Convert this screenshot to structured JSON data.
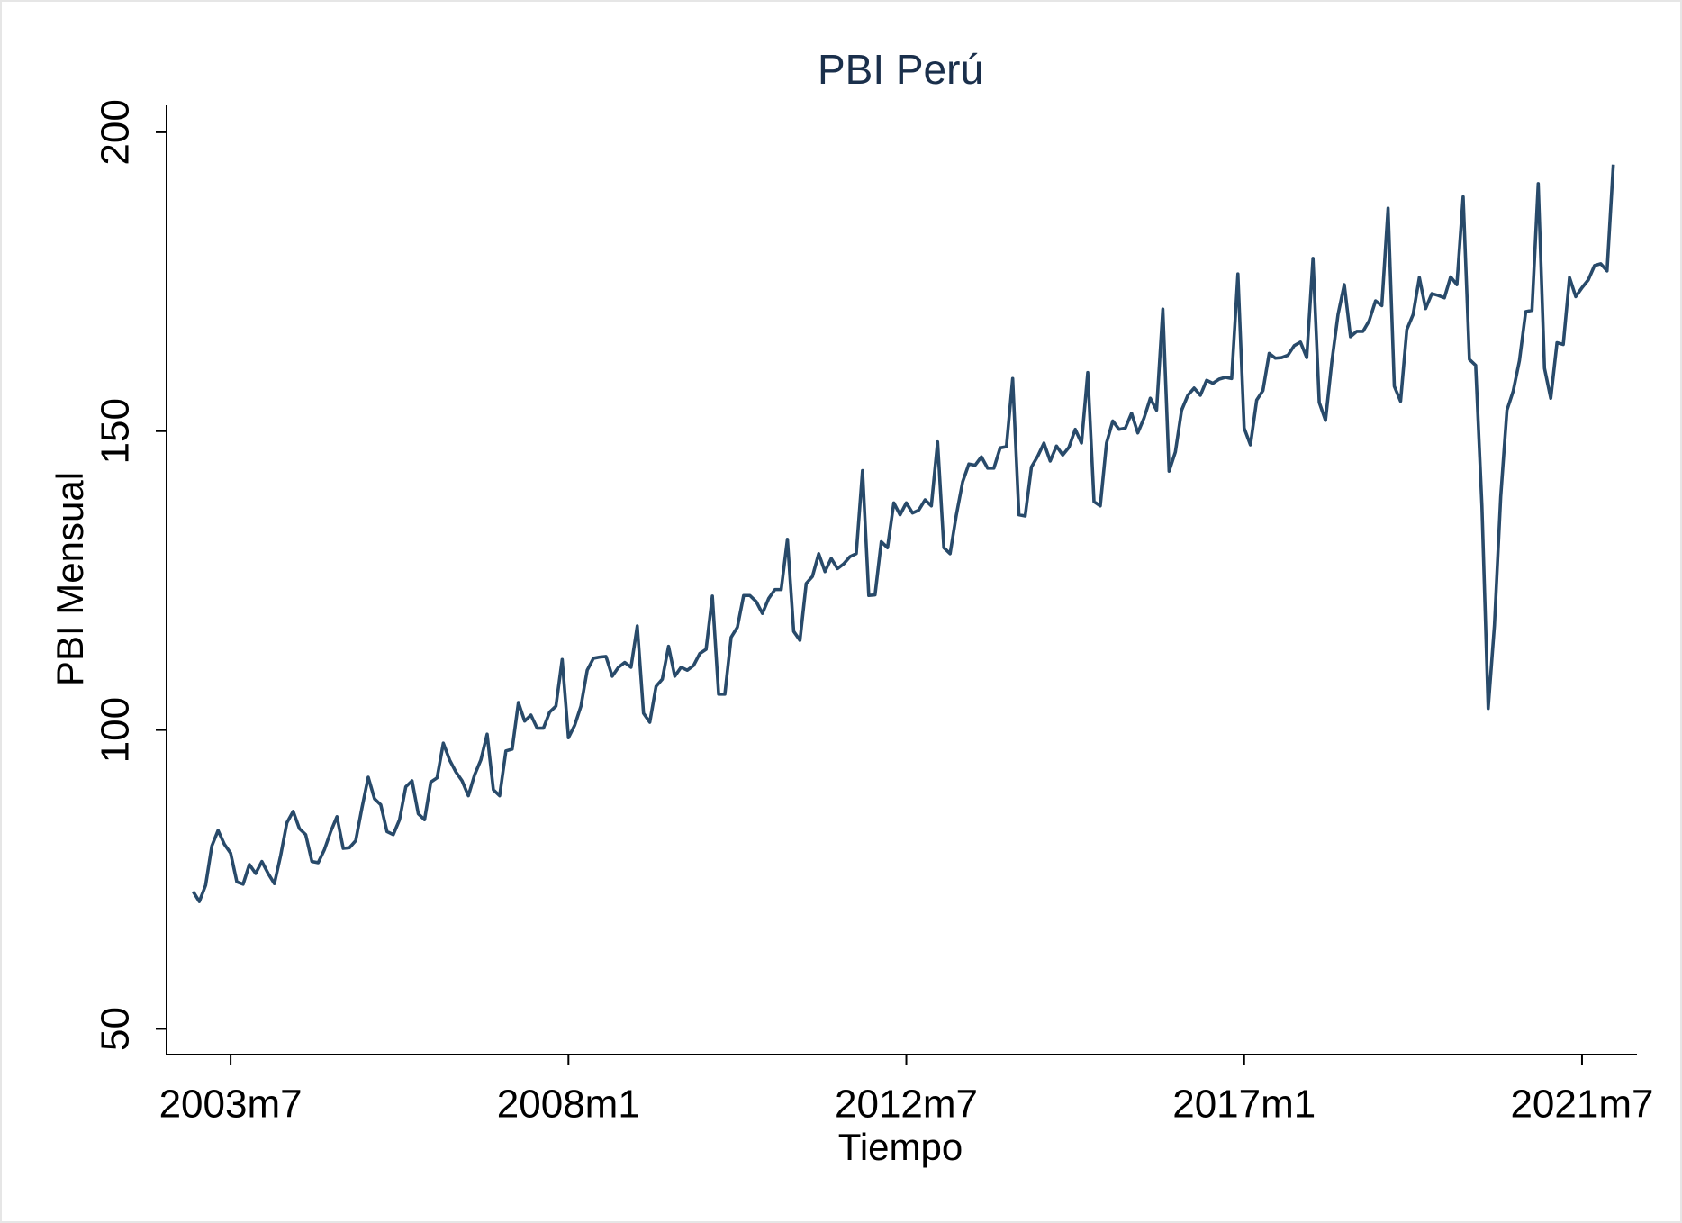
{
  "chart_data": {
    "type": "line",
    "title": "PBI Perú",
    "x_label": "Tiempo",
    "y_label": "PBI Mensual",
    "x": [
      "2003m1",
      "2003m2",
      "2003m3",
      "2003m4",
      "2003m5",
      "2003m6",
      "2003m7",
      "2003m8",
      "2003m9",
      "2003m10",
      "2003m11",
      "2003m12",
      "2004m1",
      "2004m2",
      "2004m3",
      "2004m4",
      "2004m5",
      "2004m6",
      "2004m7",
      "2004m8",
      "2004m9",
      "2004m10",
      "2004m11",
      "2004m12",
      "2005m1",
      "2005m2",
      "2005m3",
      "2005m4",
      "2005m5",
      "2005m6",
      "2005m7",
      "2005m8",
      "2005m9",
      "2005m10",
      "2005m11",
      "2005m12",
      "2006m1",
      "2006m2",
      "2006m3",
      "2006m4",
      "2006m5",
      "2006m6",
      "2006m7",
      "2006m8",
      "2006m9",
      "2006m10",
      "2006m11",
      "2006m12",
      "2007m1",
      "2007m2",
      "2007m3",
      "2007m4",
      "2007m5",
      "2007m6",
      "2007m7",
      "2007m8",
      "2007m9",
      "2007m10",
      "2007m11",
      "2007m12",
      "2008m1",
      "2008m2",
      "2008m3",
      "2008m4",
      "2008m5",
      "2008m6",
      "2008m7",
      "2008m8",
      "2008m9",
      "2008m10",
      "2008m11",
      "2008m12",
      "2009m1",
      "2009m2",
      "2009m3",
      "2009m4",
      "2009m5",
      "2009m6",
      "2009m7",
      "2009m8",
      "2009m9",
      "2009m10",
      "2009m11",
      "2009m12",
      "2010m1",
      "2010m2",
      "2010m3",
      "2010m4",
      "2010m5",
      "2010m6",
      "2010m7",
      "2010m8",
      "2010m9",
      "2010m10",
      "2010m11",
      "2010m12",
      "2011m1",
      "2011m2",
      "2011m3",
      "2011m4",
      "2011m5",
      "2011m6",
      "2011m7",
      "2011m8",
      "2011m9",
      "2011m10",
      "2011m11",
      "2011m12",
      "2012m1",
      "2012m2",
      "2012m3",
      "2012m4",
      "2012m5",
      "2012m6",
      "2012m7",
      "2012m8",
      "2012m9",
      "2012m10",
      "2012m11",
      "2012m12",
      "2013m1",
      "2013m2",
      "2013m3",
      "2013m4",
      "2013m5",
      "2013m6",
      "2013m7",
      "2013m8",
      "2013m9",
      "2013m10",
      "2013m11",
      "2013m12",
      "2014m1",
      "2014m2",
      "2014m3",
      "2014m4",
      "2014m5",
      "2014m6",
      "2014m7",
      "2014m8",
      "2014m9",
      "2014m10",
      "2014m11",
      "2014m12",
      "2015m1",
      "2015m2",
      "2015m3",
      "2015m4",
      "2015m5",
      "2015m6",
      "2015m7",
      "2015m8",
      "2015m9",
      "2015m10",
      "2015m11",
      "2015m12",
      "2016m1",
      "2016m2",
      "2016m3",
      "2016m4",
      "2016m5",
      "2016m6",
      "2016m7",
      "2016m8",
      "2016m9",
      "2016m10",
      "2016m11",
      "2016m12",
      "2017m1",
      "2017m2",
      "2017m3",
      "2017m4",
      "2017m5",
      "2017m6",
      "2017m7",
      "2017m8",
      "2017m9",
      "2017m10",
      "2017m11",
      "2017m12",
      "2018m1",
      "2018m2",
      "2018m3",
      "2018m4",
      "2018m5",
      "2018m6",
      "2018m7",
      "2018m8",
      "2018m9",
      "2018m10",
      "2018m11",
      "2018m12",
      "2019m1",
      "2019m2",
      "2019m3",
      "2019m4",
      "2019m5",
      "2019m6",
      "2019m7",
      "2019m8",
      "2019m9",
      "2019m10",
      "2019m11",
      "2019m12",
      "2020m1",
      "2020m2",
      "2020m3",
      "2020m4",
      "2020m5",
      "2020m6",
      "2020m7",
      "2020m8",
      "2020m9",
      "2020m10",
      "2020m11",
      "2020m12",
      "2021m1",
      "2021m2",
      "2021m3",
      "2021m4",
      "2021m5",
      "2021m6",
      "2021m7",
      "2021m8",
      "2021m9",
      "2021m10",
      "2021m11",
      "2021m12"
    ],
    "series": [
      {
        "color": "#284a6a",
        "values": [
          73,
          71.3,
          74,
          80.6,
          83.2,
          80.9,
          79.4,
          74.6,
          74.2,
          77.5,
          76,
          78,
          76,
          74.3,
          79,
          84.5,
          86.4,
          83.5,
          82.5,
          78,
          77.8,
          80,
          83,
          85.5,
          80.2,
          80.3,
          81.5,
          87,
          92.1,
          88.5,
          87.5,
          83,
          82.5,
          85,
          90.5,
          91.5,
          86,
          85,
          91.3,
          92,
          97.8,
          95,
          93,
          91.5,
          89,
          92.5,
          95,
          99.3,
          90,
          89,
          96.5,
          96.8,
          104.6,
          101.5,
          102.5,
          100.3,
          100.3,
          103,
          104,
          111.8,
          98.7,
          100.8,
          104,
          110,
          112,
          112.2,
          112.3,
          109,
          110.5,
          111.3,
          110.5,
          117.4,
          102.8,
          101.3,
          107.3,
          108.5,
          114,
          109,
          110.5,
          110,
          110.8,
          112.8,
          113.5,
          122.4,
          106,
          106,
          115.5,
          117.2,
          122.5,
          122.5,
          121.5,
          119.5,
          122,
          123.5,
          123.5,
          131.9,
          116.5,
          115,
          124.5,
          125.7,
          129.5,
          126.5,
          128.7,
          127,
          127.8,
          129,
          129.5,
          143.4,
          122.5,
          122.6,
          131.5,
          130.5,
          138,
          136,
          138,
          136.3,
          136.8,
          138.5,
          137.5,
          148.2,
          130.5,
          129.5,
          136,
          141.5,
          144.5,
          144.3,
          145.7,
          143.8,
          143.8,
          147.2,
          147.4,
          158.8,
          136,
          135.8,
          144,
          145.8,
          148,
          145,
          147.5,
          146,
          147.3,
          150.3,
          148,
          159.8,
          138.2,
          137.5,
          148,
          151.7,
          150.3,
          150.5,
          153,
          149.7,
          152.2,
          155.5,
          153.5,
          170.4,
          143.3,
          146.5,
          153.5,
          156,
          157.2,
          156,
          158.5,
          158,
          158.7,
          159,
          158.8,
          176.3,
          150.5,
          147.7,
          155.2,
          156.8,
          163,
          162.2,
          162.3,
          162.7,
          164.3,
          164.9,
          162.3,
          178.9,
          154.8,
          151.8,
          161.5,
          169.5,
          174.5,
          165.8,
          166.7,
          166.7,
          168.5,
          171.8,
          171,
          187.3,
          157.5,
          155,
          167,
          169.5,
          175.7,
          170.5,
          173,
          172.7,
          172.3,
          175.8,
          174.5,
          189.2,
          162,
          161,
          137.5,
          103.6,
          117.5,
          139,
          153.5,
          156.7,
          161.8,
          170,
          170.2,
          191.4,
          160.5,
          155.5,
          164.8,
          164.5,
          175.7,
          172.5,
          174,
          175.3,
          177.7,
          178,
          176.8,
          194.6
        ]
      }
    ],
    "xticks": [
      "2003m7",
      "2008m1",
      "2012m7",
      "2017m1",
      "2021m7"
    ],
    "ylim": [
      45.7,
      204.5
    ],
    "yticks": [
      50,
      100,
      150,
      200
    ],
    "grid": false
  }
}
